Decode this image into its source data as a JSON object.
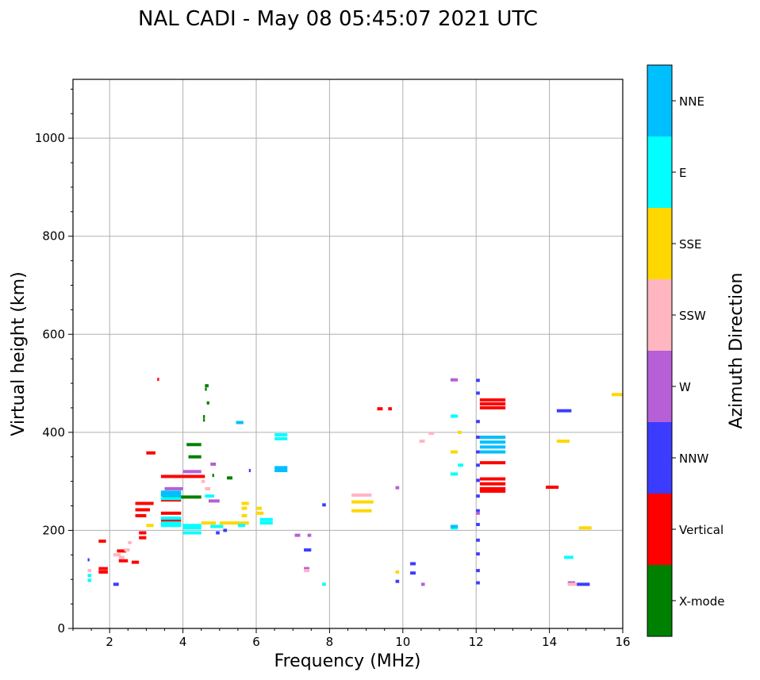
{
  "chart_data": {
    "type": "scatter",
    "title": "NAL CADI - May 08 05:45:07 2021 UTC",
    "xlabel": "Frequency (MHz)",
    "ylabel": "Virtual height (km)",
    "xlim": [
      1,
      16
    ],
    "ylim": [
      0,
      1120
    ],
    "xticks": [
      2,
      4,
      6,
      8,
      10,
      12,
      14,
      16
    ],
    "yticks": [
      0,
      200,
      400,
      600,
      800,
      1000
    ],
    "grid": true,
    "colorbar": {
      "label": "Azimuth Direction",
      "categories": [
        "X-mode",
        "Vertical",
        "NNW",
        "W",
        "SSW",
        "SSE",
        "E",
        "NNE"
      ],
      "colors": [
        "#008000",
        "#ff0000",
        "#3c3cff",
        "#b65fd6",
        "#ffb6c1",
        "#ffd700",
        "#00ffff",
        "#00bfff"
      ]
    },
    "series": [
      {
        "name": "X-mode",
        "points": [
          [
            4.5,
            375,
            4.1
          ],
          [
            4.5,
            350,
            4.15
          ],
          [
            4.5,
            268,
            3.45
          ],
          [
            4.6,
            495,
            4.7
          ],
          [
            4.6,
            488,
            4.65
          ],
          [
            4.65,
            460,
            4.72
          ],
          [
            4.55,
            432,
            4.6
          ],
          [
            4.55,
            425,
            4.6
          ],
          [
            5.2,
            307,
            5.35
          ],
          [
            4.8,
            312,
            4.85
          ]
        ]
      },
      {
        "name": "Vertical",
        "points": [
          [
            1.7,
            178,
            1.9
          ],
          [
            1.7,
            122,
            1.95
          ],
          [
            1.7,
            115,
            1.95
          ],
          [
            2.2,
            158,
            2.45
          ],
          [
            2.25,
            138,
            2.5
          ],
          [
            2.6,
            135,
            2.8
          ],
          [
            2.7,
            255,
            3.2
          ],
          [
            2.7,
            242,
            3.1
          ],
          [
            2.7,
            230,
            3.0
          ],
          [
            2.8,
            195,
            3.0
          ],
          [
            2.8,
            185,
            3.0
          ],
          [
            3.0,
            358,
            3.25
          ],
          [
            3.3,
            508,
            3.35
          ],
          [
            3.4,
            262,
            3.95
          ],
          [
            3.4,
            310,
            4.6
          ],
          [
            3.4,
            235,
            3.95
          ],
          [
            3.4,
            220,
            3.95
          ],
          [
            9.3,
            448,
            9.45
          ],
          [
            9.6,
            448,
            9.7
          ],
          [
            12.1,
            466,
            12.8
          ],
          [
            12.1,
            458,
            12.8
          ],
          [
            12.1,
            450,
            12.8
          ],
          [
            12.1,
            338,
            12.8
          ],
          [
            12.1,
            305,
            12.8
          ],
          [
            12.1,
            295,
            12.8
          ],
          [
            12.1,
            285,
            12.8
          ],
          [
            12.1,
            280,
            12.8
          ],
          [
            13.9,
            288,
            14.25
          ]
        ]
      },
      {
        "name": "NNW",
        "points": [
          [
            2.1,
            90,
            2.25
          ],
          [
            4.9,
            195,
            5.0
          ],
          [
            5.1,
            200,
            5.2
          ],
          [
            5.8,
            322,
            5.85
          ],
          [
            7.3,
            160,
            7.5
          ],
          [
            7.8,
            252,
            7.9
          ],
          [
            9.8,
            96,
            9.9
          ],
          [
            10.2,
            132,
            10.35
          ],
          [
            10.2,
            113,
            10.35
          ],
          [
            12.0,
            506,
            12.1
          ],
          [
            12.0,
            480,
            12.1
          ],
          [
            12.0,
            422,
            12.1
          ],
          [
            12.0,
            390,
            12.1
          ],
          [
            12.0,
            360,
            12.1
          ],
          [
            12.0,
            333,
            12.1
          ],
          [
            12.0,
            302,
            12.1
          ],
          [
            12.0,
            270,
            12.1
          ],
          [
            12.0,
            240,
            12.1
          ],
          [
            12.0,
            212,
            12.1
          ],
          [
            12.0,
            180,
            12.1
          ],
          [
            12.0,
            152,
            12.1
          ],
          [
            12.0,
            118,
            12.1
          ],
          [
            12.0,
            93,
            12.1
          ],
          [
            14.2,
            444,
            14.6
          ],
          [
            14.7,
            90,
            15.1
          ],
          [
            1.4,
            140,
            1.45
          ]
        ]
      },
      {
        "name": "W",
        "points": [
          [
            3.5,
            285,
            4.0
          ],
          [
            4.0,
            320,
            4.5
          ],
          [
            4.75,
            335,
            4.9
          ],
          [
            4.7,
            260,
            5.0
          ],
          [
            7.05,
            190,
            7.2
          ],
          [
            7.4,
            190,
            7.5
          ],
          [
            7.3,
            122,
            7.45
          ],
          [
            9.8,
            287,
            9.9
          ],
          [
            10.5,
            90,
            10.6
          ],
          [
            11.3,
            507,
            11.5
          ],
          [
            14.5,
            93,
            14.7
          ],
          [
            12.0,
            235,
            12.1
          ]
        ]
      },
      {
        "name": "SSW",
        "points": [
          [
            2.1,
            150,
            2.3
          ],
          [
            2.25,
            145,
            2.4
          ],
          [
            2.4,
            160,
            2.55
          ],
          [
            2.5,
            175,
            2.6
          ],
          [
            8.6,
            272,
            9.15
          ],
          [
            10.45,
            382,
            10.6
          ],
          [
            10.7,
            398,
            10.85
          ],
          [
            7.3,
            118,
            7.45
          ],
          [
            1.4,
            118,
            1.5
          ],
          [
            4.6,
            285,
            4.75
          ],
          [
            4.5,
            300,
            4.6
          ],
          [
            14.5,
            90,
            14.75
          ]
        ]
      },
      {
        "name": "SSE",
        "points": [
          [
            3.0,
            210,
            3.2
          ],
          [
            4.5,
            215,
            4.9
          ],
          [
            5.0,
            215,
            5.8
          ],
          [
            5.6,
            255,
            5.8
          ],
          [
            5.6,
            245,
            5.75
          ],
          [
            5.6,
            230,
            5.75
          ],
          [
            6.0,
            235,
            6.2
          ],
          [
            6.0,
            245,
            6.15
          ],
          [
            8.6,
            258,
            9.2
          ],
          [
            8.6,
            240,
            9.15
          ],
          [
            9.8,
            115,
            9.9
          ],
          [
            11.3,
            360,
            11.5
          ],
          [
            11.5,
            400,
            11.6
          ],
          [
            14.2,
            382,
            14.55
          ],
          [
            14.8,
            205,
            15.15
          ],
          [
            15.7,
            477,
            16.0
          ]
        ]
      },
      {
        "name": "E",
        "points": [
          [
            3.4,
            225,
            3.95
          ],
          [
            3.4,
            215,
            3.95
          ],
          [
            3.4,
            210,
            3.95
          ],
          [
            3.4,
            265,
            3.95
          ],
          [
            3.4,
            275,
            3.95
          ],
          [
            4.0,
            210,
            4.5
          ],
          [
            4.0,
            195,
            4.5
          ],
          [
            4.0,
            205,
            4.5
          ],
          [
            4.6,
            270,
            4.85
          ],
          [
            4.75,
            208,
            5.1
          ],
          [
            5.5,
            210,
            5.7
          ],
          [
            6.1,
            215,
            6.45
          ],
          [
            6.1,
            222,
            6.45
          ],
          [
            6.5,
            395,
            6.85
          ],
          [
            6.5,
            387,
            6.85
          ],
          [
            7.8,
            90,
            7.9
          ],
          [
            11.3,
            433,
            11.5
          ],
          [
            11.3,
            315,
            11.5
          ],
          [
            11.3,
            205,
            11.5
          ],
          [
            14.4,
            145,
            14.65
          ],
          [
            11.5,
            333,
            11.65
          ],
          [
            1.4,
            108,
            1.5
          ],
          [
            1.4,
            98,
            1.5
          ]
        ]
      },
      {
        "name": "NNE",
        "points": [
          [
            3.4,
            272,
            3.95
          ],
          [
            3.4,
            278,
            3.95
          ],
          [
            5.45,
            420,
            5.65
          ],
          [
            6.5,
            328,
            6.85
          ],
          [
            6.5,
            322,
            6.85
          ],
          [
            12.1,
            390,
            12.8
          ],
          [
            12.1,
            380,
            12.8
          ],
          [
            12.1,
            370,
            12.8
          ],
          [
            12.1,
            360,
            12.8
          ],
          [
            11.3,
            208,
            11.5
          ]
        ]
      }
    ]
  }
}
